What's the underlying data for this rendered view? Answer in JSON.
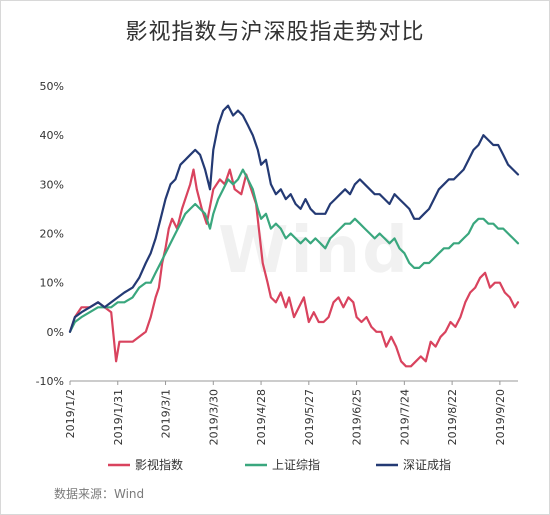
{
  "chart_data": {
    "type": "line",
    "title": "影视指数与沪深股指走势对比",
    "source": "数据来源：Wind",
    "watermark": "Wind",
    "ylim": [
      -10,
      50
    ],
    "y_ticks": [
      -10,
      0,
      10,
      20,
      30,
      40,
      50
    ],
    "y_tick_labels": [
      "-10%",
      "0%",
      "10%",
      "20%",
      "30%",
      "40%",
      "50%"
    ],
    "x_tick_labels": [
      "2019/1/2",
      "2019/1/31",
      "2019/3/1",
      "2019/3/30",
      "2019/4/28",
      "2019/5/27",
      "2019/6/25",
      "2019/7/24",
      "2019/8/22",
      "2019/9/20"
    ],
    "x_range": [
      "2019/1/2",
      "2019/10/1"
    ],
    "series": [
      {
        "name": "影视指数",
        "color": "#d9435e",
        "points": [
          [
            "2019/1/2",
            0
          ],
          [
            "2019/1/5",
            3
          ],
          [
            "2019/1/9",
            5
          ],
          [
            "2019/1/14",
            5
          ],
          [
            "2019/1/19",
            6
          ],
          [
            "2019/1/23",
            5
          ],
          [
            "2019/1/27",
            4
          ],
          [
            "2019/1/30",
            -6
          ],
          [
            "2019/2/1",
            -2
          ],
          [
            "2019/2/4",
            -2
          ],
          [
            "2019/2/9",
            -2
          ],
          [
            "2019/2/13",
            -1
          ],
          [
            "2019/2/17",
            0
          ],
          [
            "2019/2/20",
            3
          ],
          [
            "2019/2/23",
            7
          ],
          [
            "2019/2/25",
            9
          ],
          [
            "2019/2/27",
            14
          ],
          [
            "2019/3/1",
            17
          ],
          [
            "2019/3/3",
            21
          ],
          [
            "2019/3/5",
            23
          ],
          [
            "2019/3/8",
            21
          ],
          [
            "2019/3/11",
            25
          ],
          [
            "2019/3/14",
            28
          ],
          [
            "2019/3/16",
            30
          ],
          [
            "2019/3/18",
            33
          ],
          [
            "2019/3/20",
            29
          ],
          [
            "2019/3/23",
            25
          ],
          [
            "2019/3/26",
            22
          ],
          [
            "2019/3/30",
            29
          ],
          [
            "2019/4/3",
            31
          ],
          [
            "2019/4/6",
            30
          ],
          [
            "2019/4/9",
            33
          ],
          [
            "2019/4/12",
            29
          ],
          [
            "2019/4/16",
            28
          ],
          [
            "2019/4/19",
            32
          ],
          [
            "2019/4/22",
            29
          ],
          [
            "2019/4/25",
            26
          ],
          [
            "2019/4/27",
            20
          ],
          [
            "2019/4/29",
            14
          ],
          [
            "2019/5/2",
            10
          ],
          [
            "2019/5/4",
            7
          ],
          [
            "2019/5/7",
            6
          ],
          [
            "2019/5/10",
            8
          ],
          [
            "2019/5/13",
            5
          ],
          [
            "2019/5/15",
            7
          ],
          [
            "2019/5/18",
            3
          ],
          [
            "2019/5/21",
            5
          ],
          [
            "2019/5/24",
            7
          ],
          [
            "2019/5/27",
            2
          ],
          [
            "2019/5/30",
            4
          ],
          [
            "2019/6/2",
            2
          ],
          [
            "2019/6/5",
            2
          ],
          [
            "2019/6/8",
            3
          ],
          [
            "2019/6/11",
            6
          ],
          [
            "2019/6/14",
            7
          ],
          [
            "2019/6/17",
            5
          ],
          [
            "2019/6/20",
            7
          ],
          [
            "2019/6/23",
            6
          ],
          [
            "2019/6/25",
            3
          ],
          [
            "2019/6/28",
            2
          ],
          [
            "2019/7/1",
            3
          ],
          [
            "2019/7/4",
            1
          ],
          [
            "2019/7/7",
            0
          ],
          [
            "2019/7/10",
            0
          ],
          [
            "2019/7/13",
            -3
          ],
          [
            "2019/7/16",
            -1
          ],
          [
            "2019/7/19",
            -3
          ],
          [
            "2019/7/22",
            -6
          ],
          [
            "2019/7/25",
            -7
          ],
          [
            "2019/7/28",
            -7
          ],
          [
            "2019/7/31",
            -6
          ],
          [
            "2019/8/3",
            -5
          ],
          [
            "2019/8/6",
            -6
          ],
          [
            "2019/8/9",
            -2
          ],
          [
            "2019/8/12",
            -3
          ],
          [
            "2019/8/15",
            -1
          ],
          [
            "2019/8/18",
            0
          ],
          [
            "2019/8/21",
            2
          ],
          [
            "2019/8/24",
            1
          ],
          [
            "2019/8/27",
            3
          ],
          [
            "2019/8/30",
            6
          ],
          [
            "2019/9/2",
            8
          ],
          [
            "2019/9/5",
            9
          ],
          [
            "2019/9/8",
            11
          ],
          [
            "2019/9/11",
            12
          ],
          [
            "2019/9/14",
            9
          ],
          [
            "2019/9/17",
            10
          ],
          [
            "2019/9/20",
            10
          ],
          [
            "2019/9/23",
            8
          ],
          [
            "2019/9/26",
            7
          ],
          [
            "2019/9/29",
            5
          ],
          [
            "2019/10/1",
            6
          ]
        ]
      },
      {
        "name": "上证综指",
        "color": "#3aa77e",
        "points": [
          [
            "2019/1/2",
            0
          ],
          [
            "2019/1/5",
            2
          ],
          [
            "2019/1/9",
            3
          ],
          [
            "2019/1/14",
            4
          ],
          [
            "2019/1/19",
            5
          ],
          [
            "2019/1/23",
            5
          ],
          [
            "2019/1/27",
            5
          ],
          [
            "2019/1/31",
            6
          ],
          [
            "2019/2/4",
            6
          ],
          [
            "2019/2/9",
            7
          ],
          [
            "2019/2/13",
            9
          ],
          [
            "2019/2/17",
            10
          ],
          [
            "2019/2/20",
            10
          ],
          [
            "2019/2/23",
            12
          ],
          [
            "2019/2/26",
            14
          ],
          [
            "2019/3/1",
            16
          ],
          [
            "2019/3/4",
            18
          ],
          [
            "2019/3/7",
            20
          ],
          [
            "2019/3/10",
            22
          ],
          [
            "2019/3/13",
            24
          ],
          [
            "2019/3/16",
            25
          ],
          [
            "2019/3/19",
            26
          ],
          [
            "2019/3/22",
            25
          ],
          [
            "2019/3/25",
            24
          ],
          [
            "2019/3/28",
            21
          ],
          [
            "2019/3/30",
            24
          ],
          [
            "2019/4/2",
            27
          ],
          [
            "2019/4/5",
            29
          ],
          [
            "2019/4/8",
            31
          ],
          [
            "2019/4/11",
            30
          ],
          [
            "2019/4/14",
            31
          ],
          [
            "2019/4/17",
            33
          ],
          [
            "2019/4/20",
            31
          ],
          [
            "2019/4/23",
            29
          ],
          [
            "2019/4/26",
            25
          ],
          [
            "2019/4/28",
            23
          ],
          [
            "2019/5/1",
            24
          ],
          [
            "2019/5/4",
            21
          ],
          [
            "2019/5/7",
            22
          ],
          [
            "2019/5/10",
            21
          ],
          [
            "2019/5/13",
            19
          ],
          [
            "2019/5/16",
            20
          ],
          [
            "2019/5/19",
            19
          ],
          [
            "2019/5/22",
            18
          ],
          [
            "2019/5/25",
            19
          ],
          [
            "2019/5/28",
            18
          ],
          [
            "2019/5/31",
            19
          ],
          [
            "2019/6/3",
            18
          ],
          [
            "2019/6/6",
            17
          ],
          [
            "2019/6/9",
            19
          ],
          [
            "2019/6/12",
            20
          ],
          [
            "2019/6/15",
            21
          ],
          [
            "2019/6/18",
            22
          ],
          [
            "2019/6/21",
            22
          ],
          [
            "2019/6/24",
            23
          ],
          [
            "2019/6/27",
            22
          ],
          [
            "2019/6/30",
            21
          ],
          [
            "2019/7/3",
            20
          ],
          [
            "2019/7/6",
            19
          ],
          [
            "2019/7/9",
            20
          ],
          [
            "2019/7/12",
            19
          ],
          [
            "2019/7/15",
            18
          ],
          [
            "2019/7/18",
            19
          ],
          [
            "2019/7/21",
            17
          ],
          [
            "2019/7/24",
            16
          ],
          [
            "2019/7/27",
            14
          ],
          [
            "2019/7/30",
            13
          ],
          [
            "2019/8/2",
            13
          ],
          [
            "2019/8/5",
            14
          ],
          [
            "2019/8/8",
            14
          ],
          [
            "2019/8/11",
            15
          ],
          [
            "2019/8/14",
            16
          ],
          [
            "2019/8/17",
            17
          ],
          [
            "2019/8/20",
            17
          ],
          [
            "2019/8/23",
            18
          ],
          [
            "2019/8/26",
            18
          ],
          [
            "2019/8/29",
            19
          ],
          [
            "2019/9/1",
            20
          ],
          [
            "2019/9/4",
            22
          ],
          [
            "2019/9/7",
            23
          ],
          [
            "2019/9/10",
            23
          ],
          [
            "2019/9/13",
            22
          ],
          [
            "2019/9/16",
            22
          ],
          [
            "2019/9/19",
            21
          ],
          [
            "2019/9/22",
            21
          ],
          [
            "2019/9/25",
            20
          ],
          [
            "2019/9/28",
            19
          ],
          [
            "2019/10/1",
            18
          ]
        ]
      },
      {
        "name": "深证成指",
        "color": "#243a74",
        "points": [
          [
            "2019/1/2",
            0
          ],
          [
            "2019/1/5",
            3
          ],
          [
            "2019/1/9",
            4
          ],
          [
            "2019/1/14",
            5
          ],
          [
            "2019/1/19",
            6
          ],
          [
            "2019/1/23",
            5
          ],
          [
            "2019/1/27",
            6
          ],
          [
            "2019/1/31",
            7
          ],
          [
            "2019/2/4",
            8
          ],
          [
            "2019/2/9",
            9
          ],
          [
            "2019/2/13",
            11
          ],
          [
            "2019/2/17",
            14
          ],
          [
            "2019/2/20",
            16
          ],
          [
            "2019/2/23",
            19
          ],
          [
            "2019/2/26",
            23
          ],
          [
            "2019/3/1",
            27
          ],
          [
            "2019/3/4",
            30
          ],
          [
            "2019/3/7",
            31
          ],
          [
            "2019/3/10",
            34
          ],
          [
            "2019/3/13",
            35
          ],
          [
            "2019/3/16",
            36
          ],
          [
            "2019/3/19",
            37
          ],
          [
            "2019/3/22",
            36
          ],
          [
            "2019/3/25",
            33
          ],
          [
            "2019/3/28",
            29
          ],
          [
            "2019/3/30",
            37
          ],
          [
            "2019/4/2",
            42
          ],
          [
            "2019/4/5",
            45
          ],
          [
            "2019/4/8",
            46
          ],
          [
            "2019/4/11",
            44
          ],
          [
            "2019/4/14",
            45
          ],
          [
            "2019/4/17",
            44
          ],
          [
            "2019/4/20",
            42
          ],
          [
            "2019/4/23",
            40
          ],
          [
            "2019/4/26",
            37
          ],
          [
            "2019/4/28",
            34
          ],
          [
            "2019/5/1",
            35
          ],
          [
            "2019/5/4",
            30
          ],
          [
            "2019/5/7",
            28
          ],
          [
            "2019/5/10",
            29
          ],
          [
            "2019/5/13",
            27
          ],
          [
            "2019/5/16",
            28
          ],
          [
            "2019/5/19",
            26
          ],
          [
            "2019/5/22",
            25
          ],
          [
            "2019/5/25",
            27
          ],
          [
            "2019/5/28",
            25
          ],
          [
            "2019/5/31",
            24
          ],
          [
            "2019/6/3",
            24
          ],
          [
            "2019/6/6",
            24
          ],
          [
            "2019/6/9",
            26
          ],
          [
            "2019/6/12",
            27
          ],
          [
            "2019/6/15",
            28
          ],
          [
            "2019/6/18",
            29
          ],
          [
            "2019/6/21",
            28
          ],
          [
            "2019/6/24",
            30
          ],
          [
            "2019/6/27",
            31
          ],
          [
            "2019/6/30",
            30
          ],
          [
            "2019/7/3",
            29
          ],
          [
            "2019/7/6",
            28
          ],
          [
            "2019/7/9",
            28
          ],
          [
            "2019/7/12",
            27
          ],
          [
            "2019/7/15",
            26
          ],
          [
            "2019/7/18",
            28
          ],
          [
            "2019/7/21",
            27
          ],
          [
            "2019/7/24",
            26
          ],
          [
            "2019/7/27",
            25
          ],
          [
            "2019/7/30",
            23
          ],
          [
            "2019/8/2",
            23
          ],
          [
            "2019/8/5",
            24
          ],
          [
            "2019/8/8",
            25
          ],
          [
            "2019/8/11",
            27
          ],
          [
            "2019/8/14",
            29
          ],
          [
            "2019/8/17",
            30
          ],
          [
            "2019/8/20",
            31
          ],
          [
            "2019/8/23",
            31
          ],
          [
            "2019/8/26",
            32
          ],
          [
            "2019/8/29",
            33
          ],
          [
            "2019/9/1",
            35
          ],
          [
            "2019/9/4",
            37
          ],
          [
            "2019/9/7",
            38
          ],
          [
            "2019/9/10",
            40
          ],
          [
            "2019/9/13",
            39
          ],
          [
            "2019/9/16",
            38
          ],
          [
            "2019/9/19",
            38
          ],
          [
            "2019/9/22",
            36
          ],
          [
            "2019/9/25",
            34
          ],
          [
            "2019/9/28",
            33
          ],
          [
            "2019/10/1",
            32
          ]
        ]
      }
    ],
    "legend_position": "bottom",
    "grid": false
  }
}
